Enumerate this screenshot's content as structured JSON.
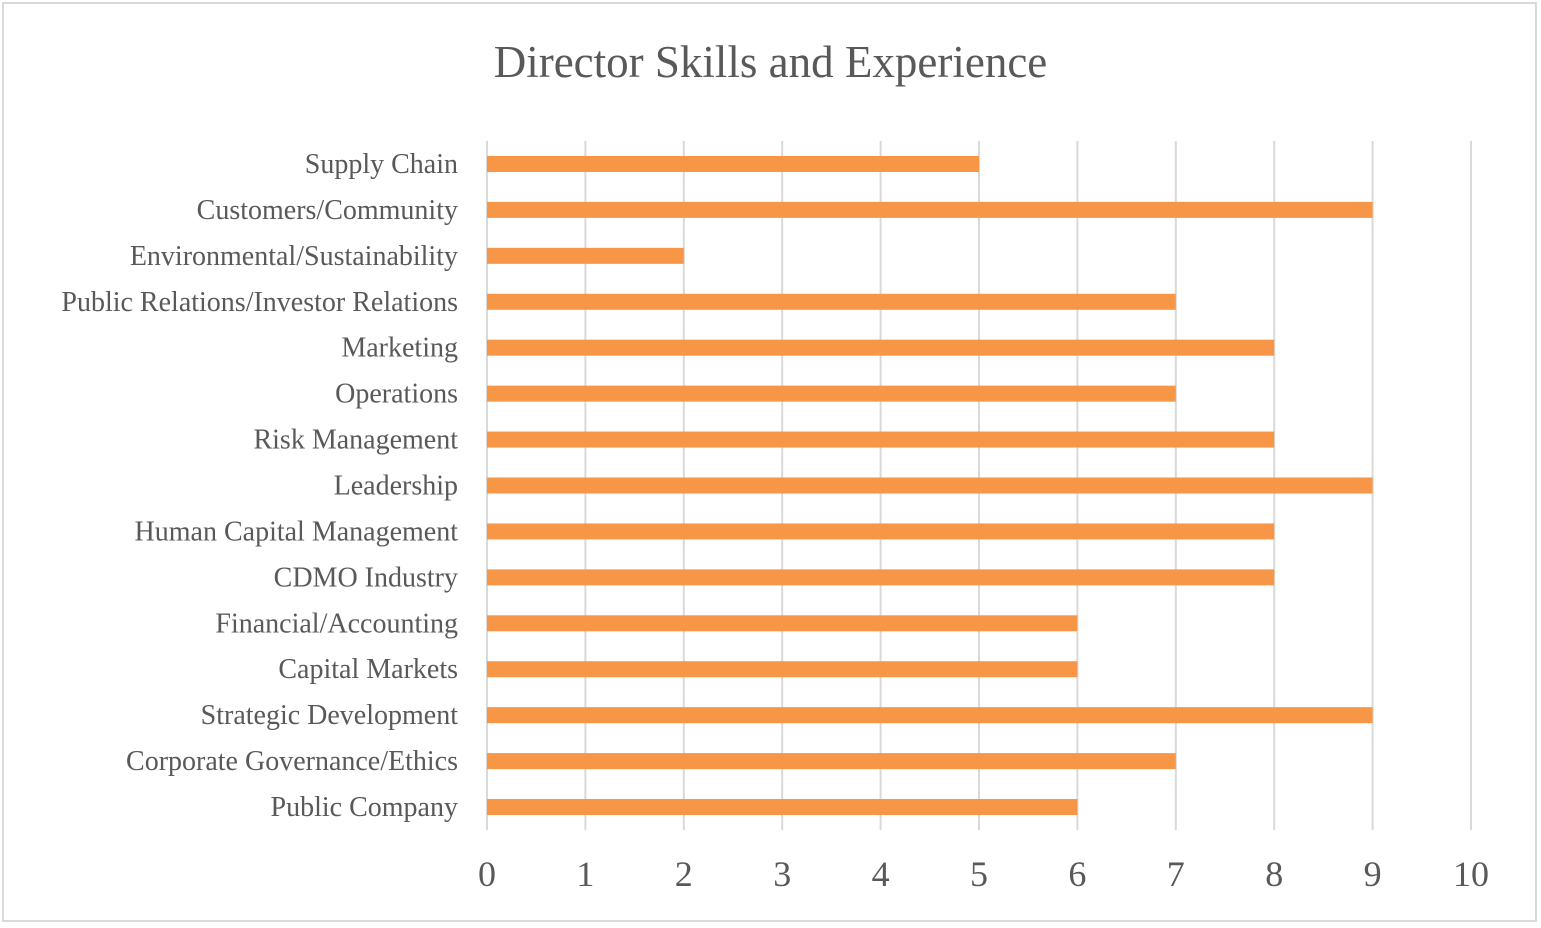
{
  "chart_data": {
    "type": "bar",
    "orientation": "horizontal",
    "title": "Director Skills and Experience",
    "xlabel": "",
    "ylabel": "",
    "categories": [
      "Supply Chain",
      "Customers/Community",
      "Environmental/Sustainability",
      "Public Relations/Investor Relations",
      "Marketing",
      "Operations",
      "Risk Management",
      "Leadership",
      "Human Capital Management",
      "CDMO Industry",
      "Financial/Accounting",
      "Capital Markets",
      "Strategic Development",
      "Corporate Governance/Ethics",
      "Public Company"
    ],
    "values": [
      5,
      9,
      2,
      7,
      8,
      7,
      8,
      9,
      8,
      8,
      6,
      6,
      9,
      7,
      6
    ],
    "xlim": [
      0,
      10
    ],
    "xticks": [
      0,
      1,
      2,
      3,
      4,
      5,
      6,
      7,
      8,
      9,
      10
    ],
    "grid": "vertical",
    "legend": "none",
    "bar_color": "#f79646",
    "grid_color": "#d9d9d9",
    "text_color": "#595959"
  }
}
